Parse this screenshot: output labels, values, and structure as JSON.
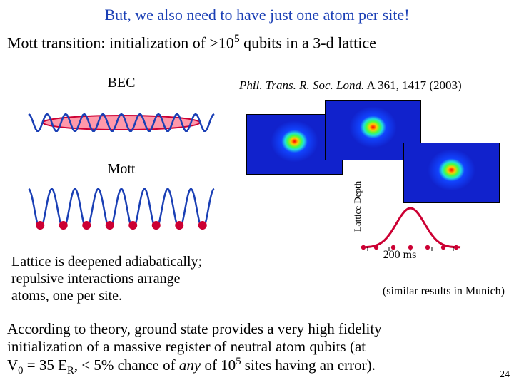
{
  "title": {
    "text": "But, we also need to have just one atom per site!",
    "color": "#1a3fb5"
  },
  "subtitle": {
    "pre": "Mott transition: initialization of >10",
    "exp": "5",
    "post": " qubits in a 3-d lattice"
  },
  "bec": {
    "label": "BEC",
    "wave_color": "#1a3fb5",
    "ellipse_fill": "#ff99aa",
    "ellipse_stroke": "#cc0033",
    "amplitude": 12,
    "periods": 10
  },
  "mott": {
    "label": "Mott",
    "wave_color": "#1a3fb5",
    "atom_color": "#cc0033",
    "amplitude": 28,
    "periods": 8,
    "caption_l1": "Lattice is deepened adiabatically;",
    "caption_l2": "repulsive interactions arrange",
    "caption_l3": "atoms, one per site."
  },
  "citation": {
    "journal": "Phil. Trans. R. Soc. Lond.",
    "rest": " A 361, 1417 (2003)"
  },
  "depth": {
    "ylabel": "Lattice Depth",
    "xlabel": "200 ms",
    "curve_color": "#cc0033",
    "curve_width": 3,
    "ticks": [
      50,
      80,
      110,
      140,
      170
    ],
    "dots_x": [
      44,
      62,
      86,
      110,
      134,
      156,
      174
    ],
    "dots_y": [
      18,
      18,
      18,
      18,
      18,
      18,
      18
    ]
  },
  "munich": "(similar results in Munich)",
  "bottom": {
    "l1": "According to theory, ground state provides a very high fidelity",
    "l2": "initialization of a massive register of neutral atom qubits (at",
    "l3a": "V",
    "l3b": " = 35 E",
    "l3c": ", < 5% chance of ",
    "l3d": "any",
    "l3e": " of 10",
    "l3f": " sites having an error).",
    "sub0": "0",
    "subR": "R",
    "exp5": "5"
  },
  "page": "24",
  "colors": {
    "text": "#000000",
    "bg": "#ffffff"
  }
}
